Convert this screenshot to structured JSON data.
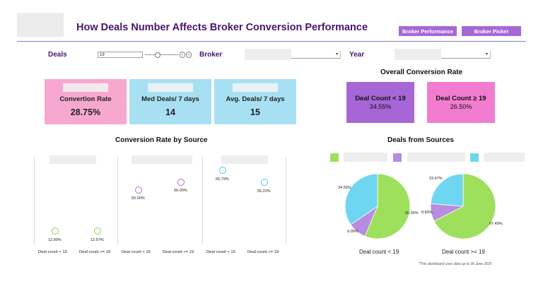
{
  "header": {
    "title": "How Deals Number Affects Broker Conversion Performance",
    "nav": [
      "Broker Performance",
      "Broker Picker"
    ]
  },
  "filters": {
    "deals_label": "Deals",
    "deals_value": "19",
    "broker_label": "Broker",
    "year_label": "Year"
  },
  "kpis": [
    {
      "label": "Convertion Rate",
      "value": "28.75%",
      "color": "#f7a8cf"
    },
    {
      "label": "Med Deals/ 7 days",
      "value": "14",
      "color": "#a7e0f2"
    },
    {
      "label": "Avg. Deals/ 7 days",
      "value": "15",
      "color": "#a7e0f2"
    }
  ],
  "overall": {
    "title": "Overall Conversion Rate",
    "items": [
      {
        "label": "Deal Count < 19",
        "value": "34.55%",
        "color": "#a766d6"
      },
      {
        "label": "Deal Count ≥ 19",
        "value": "26.50%",
        "color": "#f27ccf"
      }
    ]
  },
  "sources_chart": {
    "title": "Conversion Rate by Source",
    "panels": [
      {
        "icon": "handshake-icon",
        "color": "#8fd14f",
        "points": [
          {
            "label": "Deal count < 19",
            "value": "12.90%"
          },
          {
            "label": "Deal count >= 19",
            "value": "12.57%"
          }
        ]
      },
      {
        "icon": "person-icon",
        "color": "#b46ad6",
        "points": [
          {
            "label": "Deal count < 19",
            "value": "50.00%"
          },
          {
            "label": "Deal count >= 19",
            "value": "56.00%"
          }
        ]
      },
      {
        "icon": "network-icon",
        "color": "#4cc8ea",
        "points": [
          {
            "label": "Deal count < 19",
            "value": "65.79%"
          },
          {
            "label": "Deal count >= 19",
            "value": "55.22%"
          }
        ]
      }
    ]
  },
  "pies": {
    "title": "Deals from Sources",
    "legend_colors": [
      "#9ee05c",
      "#b68de0",
      "#6fd6f2"
    ],
    "charts": [
      {
        "label": "Deal count < 19",
        "slices": [
          {
            "value": 56.36,
            "text": "56.36%",
            "color": "#9ee05c"
          },
          {
            "value": 9.09,
            "text": "9.09%",
            "color": "#b68de0"
          },
          {
            "value": 34.55,
            "text": "34.55%",
            "color": "#6fd6f2"
          }
        ]
      },
      {
        "label": "Deal count >= 19",
        "slices": [
          {
            "value": 67.49,
            "text": "67.49%",
            "color": "#9ee05c"
          },
          {
            "value": 8.83,
            "text": "8.83%",
            "color": "#b68de0"
          },
          {
            "value": 23.67,
            "text": "23.67%",
            "color": "#6fd6f2"
          }
        ]
      }
    ]
  },
  "footnote": "*This dashboard uses data up to 30 June 2025"
}
